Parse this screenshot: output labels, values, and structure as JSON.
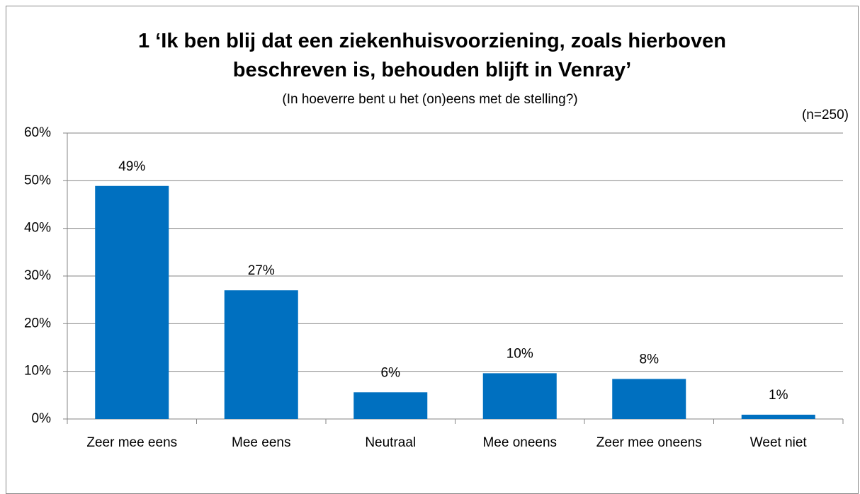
{
  "chart_data": {
    "type": "bar",
    "title": "1 ‘Ik ben blij dat een ziekenhuisvoorziening, zoals hierboven beschreven is, behouden blijft in Venray’",
    "subtitle": "(In hoeverre bent u het (on)eens met de stelling?)",
    "annotation": "(n=250)",
    "categories": [
      "Zeer mee eens",
      "Mee eens",
      "Neutraal",
      "Mee oneens",
      "Zeer mee oneens",
      "Weet niet"
    ],
    "values": [
      48.9,
      27.0,
      5.6,
      9.6,
      8.4,
      0.9
    ],
    "value_labels": [
      "49%",
      "27%",
      "6%",
      "10%",
      "8%",
      "1%"
    ],
    "color": "#0070c0",
    "ylim": [
      0,
      60
    ],
    "yticks": [
      {
        "value": 0,
        "label": "0%"
      },
      {
        "value": 10,
        "label": "10%"
      },
      {
        "value": 20,
        "label": "20%"
      },
      {
        "value": 30,
        "label": "30%"
      },
      {
        "value": 40,
        "label": "40%"
      },
      {
        "value": 50,
        "label": "50%"
      },
      {
        "value": 60,
        "label": "60%"
      }
    ],
    "grid": true
  }
}
